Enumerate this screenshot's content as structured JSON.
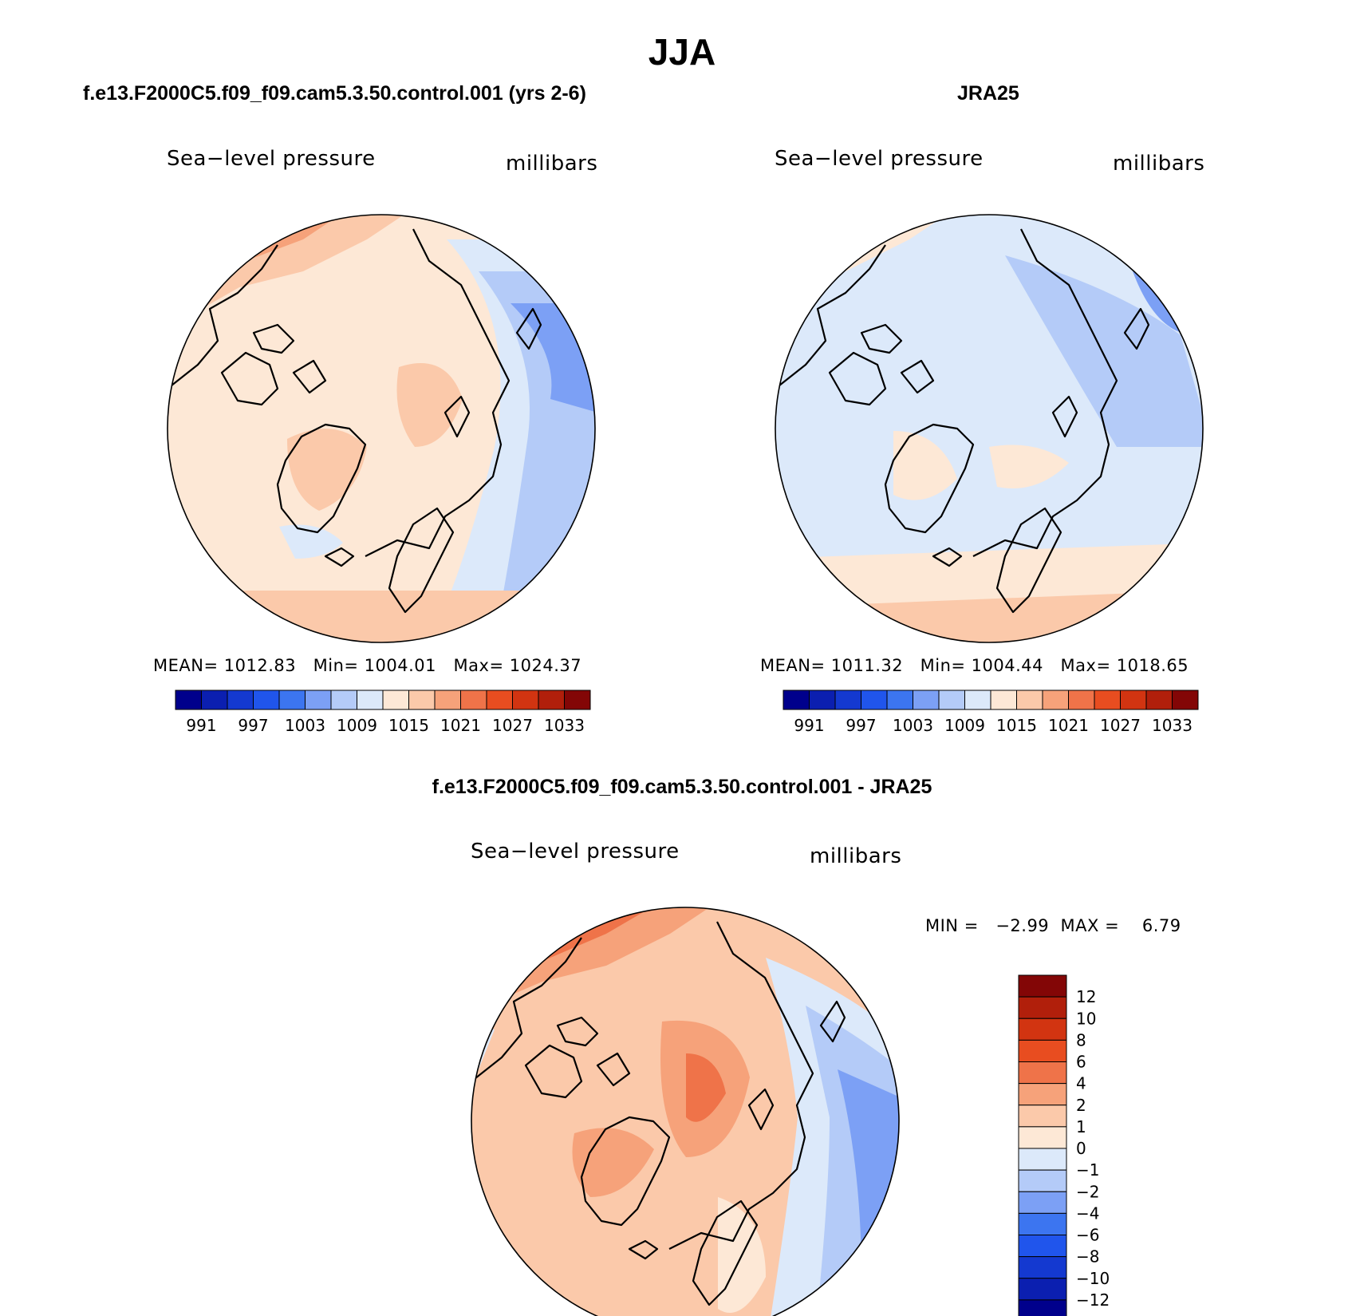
{
  "title": "JJA",
  "panels": {
    "model": {
      "case": "f.e13.F2000C5.f09_f09.cam5.3.50.control.001 (yrs 2-6)",
      "variable": "Sea−level pressure",
      "units": "millibars",
      "mean_label": "MEAN=",
      "mean": "1012.83",
      "min_label": "Min=",
      "min": "1004.01",
      "max_label": "Max=",
      "max": "1024.37"
    },
    "obs": {
      "case": "JRA25",
      "variable": "Sea−level pressure",
      "units": "millibars",
      "mean_label": "MEAN=",
      "mean": "1011.32",
      "min_label": "Min=",
      "min": "1004.44",
      "max_label": "Max=",
      "max": "1018.65"
    },
    "diff": {
      "case": "f.e13.F2000C5.f09_f09.cam5.3.50.control.001 - JRA25",
      "variable": "Sea−level pressure",
      "units": "millibars",
      "minmax": "MIN =   −2.99  MAX =    6.79"
    }
  },
  "colorbars": {
    "abs": {
      "colors": [
        "#00008c",
        "#0b1fb0",
        "#1439d0",
        "#2055ec",
        "#3c75f0",
        "#7ca0f5",
        "#b4cbf8",
        "#dce9fa",
        "#fde8d6",
        "#fbc9aa",
        "#f6a27a",
        "#ef7349",
        "#e84d20",
        "#d23411",
        "#b11f0b",
        "#830606"
      ],
      "labels": [
        "991",
        "997",
        "1003",
        "1009",
        "1015",
        "1021",
        "1027",
        "1033"
      ]
    },
    "diff": {
      "colors": [
        "#00008c",
        "#0b1fb0",
        "#1439d0",
        "#2055ec",
        "#3c75f0",
        "#7ca0f5",
        "#b4cbf8",
        "#dce9fa",
        "#fde8d6",
        "#fbc9aa",
        "#f6a27a",
        "#ef7349",
        "#e84d20",
        "#d23411",
        "#b11f0b",
        "#830606"
      ],
      "labels": [
        "12",
        "10",
        "8",
        "6",
        "4",
        "2",
        "1",
        "0",
        "−1",
        "−2",
        "−4",
        "−6",
        "−8",
        "−10",
        "−12"
      ]
    }
  }
}
